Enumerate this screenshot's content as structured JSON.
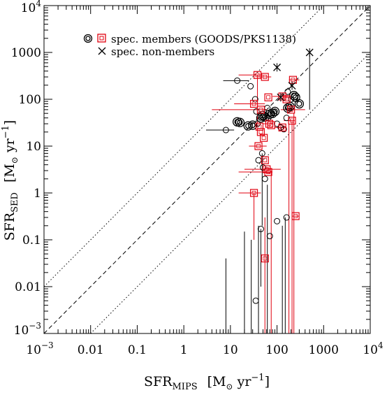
{
  "chart_data": {
    "type": "scatter",
    "xscale": "log",
    "yscale": "log",
    "xlim": [
      0.001,
      10000
    ],
    "ylim": [
      0.001,
      10000
    ],
    "xlabel": {
      "main": "SFR",
      "sub": "MIPS",
      "unit_open": "[M",
      "unit_sun": "⊙",
      "unit_mid": " yr",
      "unit_exp": "−1",
      "unit_close": "]"
    },
    "ylabel": {
      "main": "SFR",
      "sub": "SED",
      "unit_open": "[M",
      "unit_sun": "⊙",
      "unit_mid": " yr",
      "unit_exp": "−1",
      "unit_close": "]"
    },
    "x_ticks": [
      {
        "value": 0.001,
        "base": "10",
        "exp": "−3"
      },
      {
        "value": 0.01,
        "label": "0.01"
      },
      {
        "value": 0.1,
        "label": "0.1"
      },
      {
        "value": 1,
        "label": "1"
      },
      {
        "value": 10,
        "label": "10"
      },
      {
        "value": 100,
        "label": "100"
      },
      {
        "value": 1000,
        "label": "1000"
      },
      {
        "value": 10000,
        "base": "10",
        "exp": "4"
      }
    ],
    "y_ticks": [
      {
        "value": 0.001,
        "base": "10",
        "exp": "−3"
      },
      {
        "value": 0.01,
        "label": "0.01"
      },
      {
        "value": 0.1,
        "label": "0.1"
      },
      {
        "value": 1,
        "label": "1"
      },
      {
        "value": 10,
        "label": "10"
      },
      {
        "value": 100,
        "label": "100"
      },
      {
        "value": 1000,
        "label": "1000"
      },
      {
        "value": 10000,
        "base": "10",
        "exp": "4"
      }
    ],
    "reference_lines": [
      {
        "style": "dashed",
        "factor": 1
      },
      {
        "style": "dotted",
        "factor": 10
      },
      {
        "style": "dotted",
        "factor": 0.1
      }
    ],
    "legend": {
      "placement": "top-left",
      "entries": [
        {
          "marker": "circle+square",
          "label": "spec. members (GOODS/PKS1138)"
        },
        {
          "marker": "cross",
          "label": "spec. non-members"
        }
      ]
    },
    "series": [
      {
        "marker": "circle",
        "color": "#000000",
        "points": [
          {
            "x": 14,
            "y": 250,
            "xlo": 7,
            "xhi": 25
          },
          {
            "x": 27,
            "y": 190
          },
          {
            "x": 8,
            "y": 22,
            "xlo": 3,
            "xhi": 12
          },
          {
            "x": 14,
            "y": 33,
            "big": true
          },
          {
            "x": 16,
            "y": 32,
            "big": true
          },
          {
            "x": 24,
            "y": 27,
            "big": true
          },
          {
            "x": 30,
            "y": 28,
            "big": true
          },
          {
            "x": 34,
            "y": 100
          },
          {
            "x": 38,
            "y": 30
          },
          {
            "x": 45,
            "y": 40,
            "big": true
          },
          {
            "x": 50,
            "y": 45,
            "big": true
          },
          {
            "x": 55,
            "y": 42,
            "big": true
          },
          {
            "x": 62,
            "y": 65
          },
          {
            "x": 70,
            "y": 48,
            "big": true
          },
          {
            "x": 80,
            "y": 50,
            "big": true
          },
          {
            "x": 90,
            "y": 55,
            "big": true
          },
          {
            "x": 65,
            "y": 40
          },
          {
            "x": 100,
            "y": 30
          },
          {
            "x": 120,
            "y": 25
          },
          {
            "x": 140,
            "y": 23
          },
          {
            "x": 160,
            "y": 40
          },
          {
            "x": 170,
            "y": 65,
            "big": true
          },
          {
            "x": 190,
            "y": 70,
            "big": true
          },
          {
            "x": 170,
            "y": 145
          },
          {
            "x": 200,
            "y": 100
          },
          {
            "x": 230,
            "y": 120,
            "big": true
          },
          {
            "x": 250,
            "y": 110,
            "big": true
          },
          {
            "x": 300,
            "y": 80,
            "big": true
          },
          {
            "x": 36,
            "y": 55
          },
          {
            "x": 48,
            "y": 7,
            "ylo": 0.2
          },
          {
            "x": 40,
            "y": 5
          },
          {
            "x": 50,
            "y": 3.5
          },
          {
            "x": 45,
            "y": 0.17,
            "ylo": 0.01
          },
          {
            "x": 70,
            "y": 0.12
          },
          {
            "x": 100,
            "y": 0.25
          },
          {
            "x": 160,
            "y": 0.3
          },
          {
            "x": 35,
            "y": 0.005
          },
          {
            "x": 55,
            "y": 2
          }
        ]
      },
      {
        "marker": "square",
        "color": "#e0000f",
        "points": [
          {
            "x": 38,
            "y": 330,
            "xlo": 15,
            "xhi": 50,
            "ylo": 30
          },
          {
            "x": 55,
            "y": 300,
            "xlo": 40,
            "xhi": 75
          },
          {
            "x": 32,
            "y": 80,
            "xlo": 12,
            "xhi": 55
          },
          {
            "x": 45,
            "y": 60,
            "xlo": 4,
            "xhi": 60
          },
          {
            "x": 65,
            "y": 110
          },
          {
            "x": 68,
            "y": 30,
            "xlo": 50,
            "xhi": 80
          },
          {
            "x": 75,
            "y": 28
          },
          {
            "x": 42,
            "y": 26
          },
          {
            "x": 45,
            "y": 20
          },
          {
            "x": 52,
            "y": 15
          },
          {
            "x": 40,
            "y": 10,
            "xlo": 25,
            "xhi": 60
          },
          {
            "x": 55,
            "y": 5
          },
          {
            "x": 60,
            "y": 3.2,
            "xlo": 20,
            "xhi": 120
          },
          {
            "x": 65,
            "y": 2.8,
            "xlo": 15,
            "xhi": 80
          },
          {
            "x": 32,
            "y": 1,
            "xlo": 15,
            "xhi": 45,
            "ylo": 0.1
          },
          {
            "x": 55,
            "y": 0.04,
            "ylo": 0.0008,
            "yhi": 0.3
          },
          {
            "x": 130,
            "y": 115,
            "xlo": 80,
            "xhi": 180
          },
          {
            "x": 160,
            "y": 100
          },
          {
            "x": 200,
            "y": 60,
            "xlo": 120,
            "xhi": 400
          },
          {
            "x": 220,
            "y": 260,
            "xlo": 180,
            "xhi": 300
          },
          {
            "x": 210,
            "y": 35,
            "xlo": 140,
            "xhi": 240,
            "ylo": 0.001
          },
          {
            "x": 130,
            "y": 25,
            "xlo": 90,
            "xhi": 160
          },
          {
            "x": 250,
            "y": 0.32,
            "xlo": 210,
            "xhi": 300
          }
        ]
      },
      {
        "marker": "cross",
        "color": "#000000",
        "points": [
          {
            "x": 100,
            "y": 480
          },
          {
            "x": 500,
            "y": 1000,
            "ylo": 60
          },
          {
            "x": 210,
            "y": 195
          },
          {
            "x": 120,
            "y": 110
          }
        ]
      }
    ],
    "error_lines": [
      {
        "x": 8,
        "ylo": 0.0006,
        "yhi": 0.04,
        "color": "#000000"
      },
      {
        "x": 20,
        "ylo": 0.0006,
        "yhi": 0.15,
        "color": "#000000"
      },
      {
        "x": 40,
        "ylo": 0.0006,
        "yhi": 0.2,
        "color": "#000000"
      },
      {
        "x": 62,
        "ylo": 0.0006,
        "yhi": 1.5,
        "color": "#000000"
      },
      {
        "x": 130,
        "ylo": 0.0006,
        "yhi": 0.2,
        "color": "#000000"
      },
      {
        "x": 150,
        "ylo": 0.0006,
        "yhi": 0.3,
        "color": "#000000"
      },
      {
        "x": 28,
        "ylo": 0.0006,
        "yhi": 0.1,
        "color": "#000000"
      },
      {
        "x": 230,
        "ylo": 0.0008,
        "yhi": 50,
        "color": "#e0000f"
      },
      {
        "x": 180,
        "ylo": 0.0008,
        "yhi": 30,
        "color": "#e0000f"
      },
      {
        "x": 75,
        "ylo": 0.0008,
        "yhi": 3,
        "color": "#e0000f"
      }
    ]
  }
}
